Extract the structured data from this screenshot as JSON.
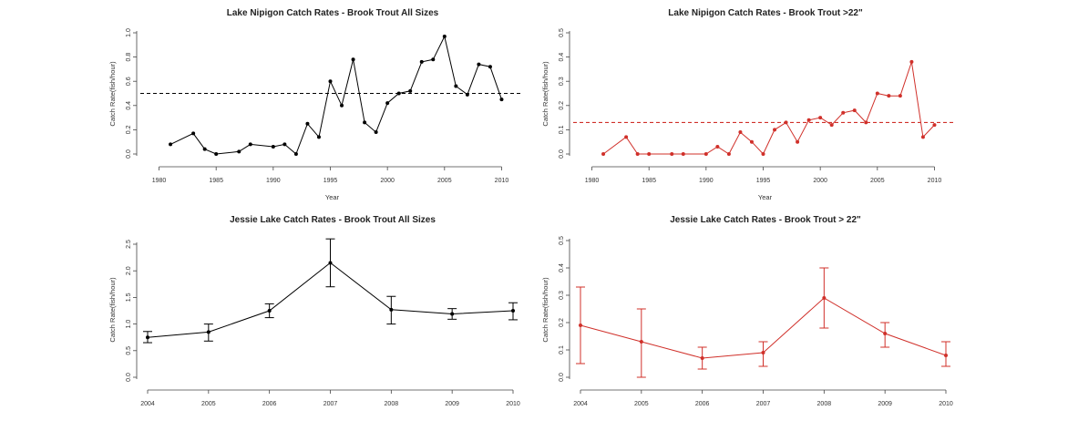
{
  "chart_data": [
    {
      "type": "line",
      "title": "Lake Nipigon Catch Rates - Brook Trout All Sizes",
      "xlabel": "Year",
      "ylabel": "Catch Rate(fish/hour)",
      "xlim": [
        1979,
        2011
      ],
      "ylim": [
        0,
        1.0
      ],
      "x_ticks": [
        1980,
        1985,
        1990,
        1995,
        2000,
        2005,
        2010
      ],
      "y_ticks": [
        0.0,
        0.2,
        0.4,
        0.6,
        0.8,
        1.0
      ],
      "y_tick_labels": [
        "0.0",
        "0.2",
        "0.4",
        "0.6",
        "0.8",
        "1.0"
      ],
      "color": "#000000",
      "reference_line": 0.5,
      "x": [
        1981,
        1983,
        1984,
        1985,
        1987,
        1988,
        1990,
        1991,
        1992,
        1993,
        1994,
        1995,
        1996,
        1997,
        1998,
        1999,
        2000,
        2001,
        2002,
        2003,
        2004,
        2005,
        2006,
        2007,
        2008,
        2009,
        2010
      ],
      "series": [
        {
          "values": [
            0.08,
            0.17,
            0.04,
            0.0,
            0.02,
            0.08,
            0.06,
            0.08,
            0.0,
            0.25,
            0.14,
            0.6,
            0.4,
            0.78,
            0.26,
            0.18,
            0.42,
            0.5,
            0.52,
            0.76,
            0.78,
            0.97,
            0.56,
            0.49,
            0.74,
            0.72,
            0.45
          ]
        }
      ]
    },
    {
      "type": "line",
      "title": "Lake Nipigon Catch Rates - Brook Trout >22\"",
      "xlabel": "Year",
      "ylabel": "Catch Rate(fish/hour)",
      "xlim": [
        1979,
        2011
      ],
      "ylim": [
        0,
        0.5
      ],
      "x_ticks": [
        1980,
        1985,
        1990,
        1995,
        2000,
        2005,
        2010
      ],
      "y_ticks": [
        0.0,
        0.1,
        0.2,
        0.3,
        0.4,
        0.5
      ],
      "y_tick_labels": [
        "0.0",
        "0.1",
        "0.2",
        "0.3",
        "0.4",
        "0.5"
      ],
      "color": "#d0302a",
      "reference_line": 0.13,
      "x": [
        1981,
        1983,
        1984,
        1985,
        1987,
        1988,
        1990,
        1991,
        1992,
        1993,
        1994,
        1995,
        1996,
        1997,
        1998,
        1999,
        2000,
        2001,
        2002,
        2003,
        2004,
        2005,
        2006,
        2007,
        2008,
        2009,
        2010
      ],
      "series": [
        {
          "values": [
            0.0,
            0.07,
            0.0,
            0.0,
            0.0,
            0.0,
            0.0,
            0.03,
            0.0,
            0.09,
            0.05,
            0.0,
            0.1,
            0.13,
            0.05,
            0.14,
            0.15,
            0.12,
            0.17,
            0.18,
            0.13,
            0.25,
            0.24,
            0.24,
            0.38,
            0.07,
            0.12
          ]
        }
      ]
    },
    {
      "type": "line",
      "title": "Jessie Lake Catch Rates - Brook Trout All Sizes",
      "xlabel": "",
      "ylabel": "Catch Rate(fish/hour)",
      "xlim": [
        2004,
        2010
      ],
      "ylim": [
        0,
        2.5
      ],
      "x_ticks": [
        2004,
        2005,
        2006,
        2007,
        2008,
        2009,
        2010
      ],
      "y_ticks": [
        0.0,
        0.5,
        1.0,
        1.5,
        2.0,
        2.5
      ],
      "y_tick_labels": [
        "0.0",
        "0.5",
        "1.0",
        "1.5",
        "2.0",
        "2.5"
      ],
      "color": "#000000",
      "x": [
        2004,
        2005,
        2006,
        2007,
        2008,
        2009,
        2010
      ],
      "series": [
        {
          "values": [
            0.75,
            0.85,
            1.25,
            2.15,
            1.27,
            1.19,
            1.25
          ],
          "lower": [
            0.65,
            0.68,
            1.12,
            1.7,
            1.0,
            1.09,
            1.08
          ],
          "upper": [
            0.86,
            1.0,
            1.38,
            2.6,
            1.52,
            1.29,
            1.4
          ]
        }
      ]
    },
    {
      "type": "line",
      "title": "Jessie Lake Catch Rates - Brook Trout > 22\"",
      "xlabel": "",
      "ylabel": "Catch Rate(fish/hour)",
      "xlim": [
        2004,
        2010
      ],
      "ylim": [
        0,
        0.5
      ],
      "x_ticks": [
        2004,
        2005,
        2006,
        2007,
        2008,
        2009,
        2010
      ],
      "y_ticks": [
        0.0,
        0.1,
        0.2,
        0.3,
        0.4,
        0.5
      ],
      "y_tick_labels": [
        "0.0",
        "0.1",
        "0.2",
        "0.3",
        "0.4",
        "0.5"
      ],
      "color": "#d0302a",
      "x": [
        2004,
        2005,
        2006,
        2007,
        2008,
        2009,
        2010
      ],
      "series": [
        {
          "values": [
            0.19,
            0.13,
            0.07,
            0.09,
            0.29,
            0.16,
            0.08
          ],
          "lower": [
            0.05,
            0.0,
            0.03,
            0.04,
            0.18,
            0.11,
            0.04
          ],
          "upper": [
            0.33,
            0.25,
            0.11,
            0.13,
            0.4,
            0.2,
            0.13
          ]
        }
      ]
    }
  ]
}
